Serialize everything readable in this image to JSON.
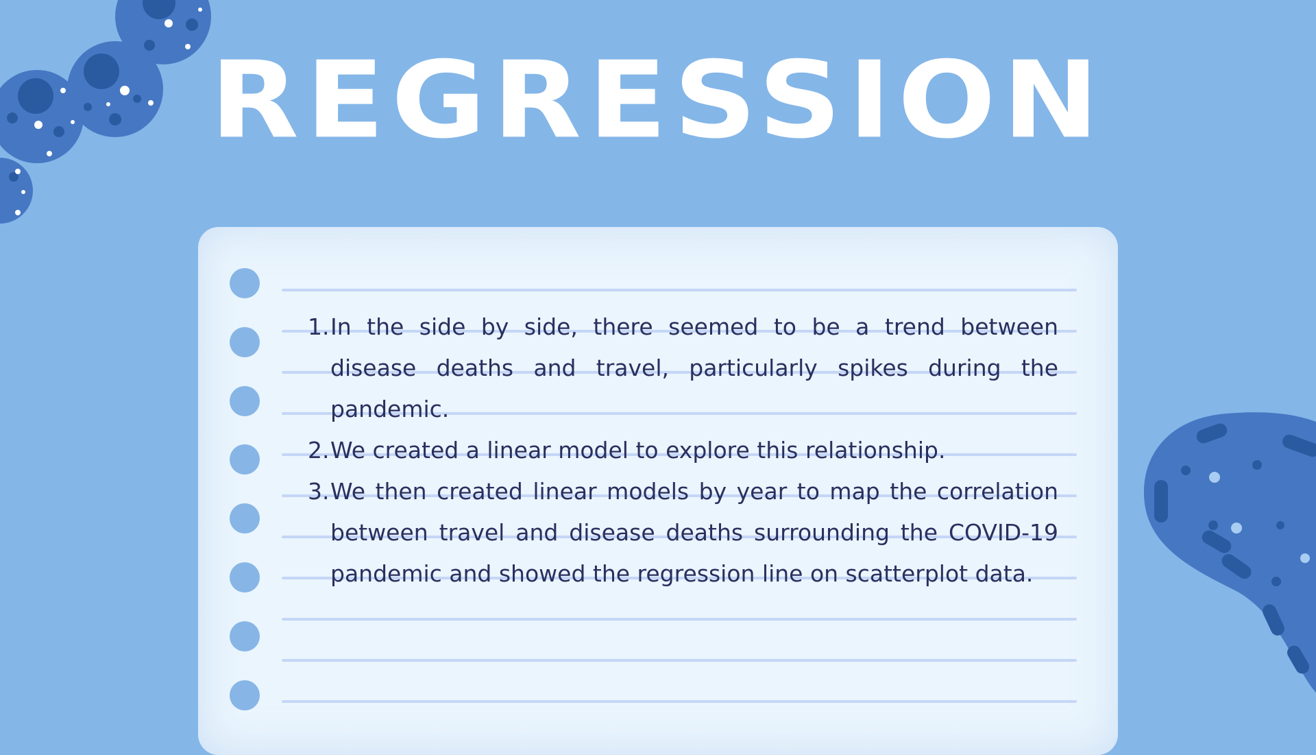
{
  "slide": {
    "title": "REGRESSION",
    "points": [
      {
        "number": "1.",
        "text": "In the side by side, there seemed to be a trend between disease deaths and travel, particularly spikes during the pandemic."
      },
      {
        "number": "2.",
        "text": "We created a linear model to explore this relationship."
      },
      {
        "number": "3.",
        "text": "We then created linear models by year to map the correlation between travel and disease deaths surrounding the COVID-19 pandemic and showed the regression line on scatterplot data."
      }
    ]
  },
  "colors": {
    "background": "#84b6e8",
    "paper": "#eaf5fd",
    "text": "#2a2f5e",
    "decoration": "#4677c2"
  }
}
